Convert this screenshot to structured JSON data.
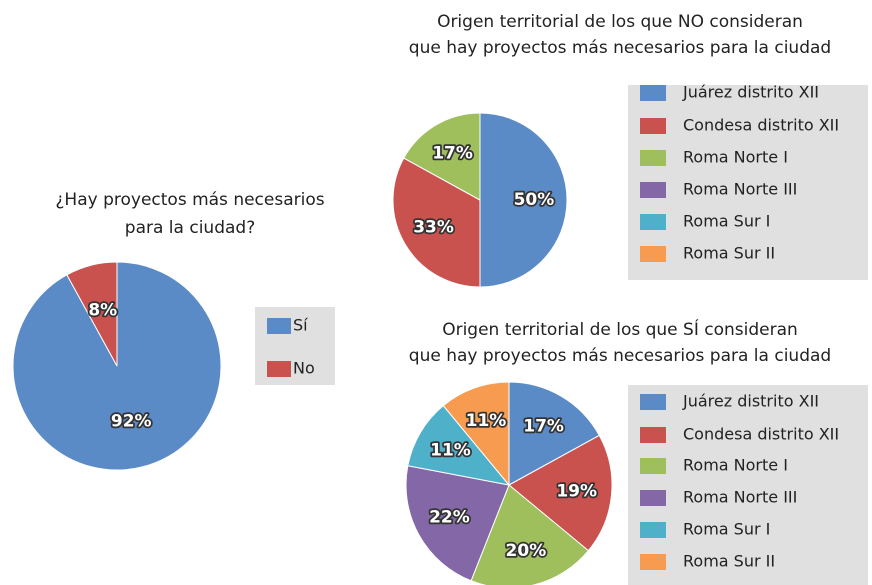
{
  "chart_data": [
    {
      "type": "pie",
      "title": "¿Hay proyectos más necesarios para la ciudad?",
      "categories": [
        "Sí",
        "No"
      ],
      "values": [
        92,
        8
      ],
      "value_labels": [
        "92%",
        "8%"
      ],
      "colors": [
        "#5b8bc6",
        "#c9524f"
      ],
      "legend": "right"
    },
    {
      "type": "pie",
      "title": "Origen territorial de los que NO consideran que hay proyectos más necesarios para la ciudad",
      "categories": [
        "Juárez distrito XII",
        "Condesa distrito XII",
        "Roma Norte I",
        "Roma Norte III",
        "Roma Sur I",
        "Roma Sur II"
      ],
      "values": [
        50,
        33,
        17,
        0,
        0,
        0
      ],
      "value_labels": [
        "50%",
        "33%",
        "17%",
        null,
        null,
        null
      ],
      "colors": [
        "#5b8bc6",
        "#c9524f",
        "#9ebf5c",
        "#8467a6",
        "#4fb1c9",
        "#f79b50"
      ],
      "legend": "right"
    },
    {
      "type": "pie",
      "title": "Origen territorial de los que SÍ consideran que hay proyectos más necesarios para la ciudad",
      "categories": [
        "Juárez distrito XII",
        "Condesa distrito XII",
        "Roma Norte I",
        "Roma Norte III",
        "Roma Sur I",
        "Roma Sur II"
      ],
      "values": [
        17,
        19,
        20,
        22,
        11,
        11
      ],
      "value_labels": [
        "17%",
        "19%",
        "20%",
        "22%",
        "11%",
        "11%"
      ],
      "colors": [
        "#5b8bc6",
        "#c9524f",
        "#9ebf5c",
        "#8467a6",
        "#4fb1c9",
        "#f79b50"
      ],
      "legend": "right"
    }
  ]
}
